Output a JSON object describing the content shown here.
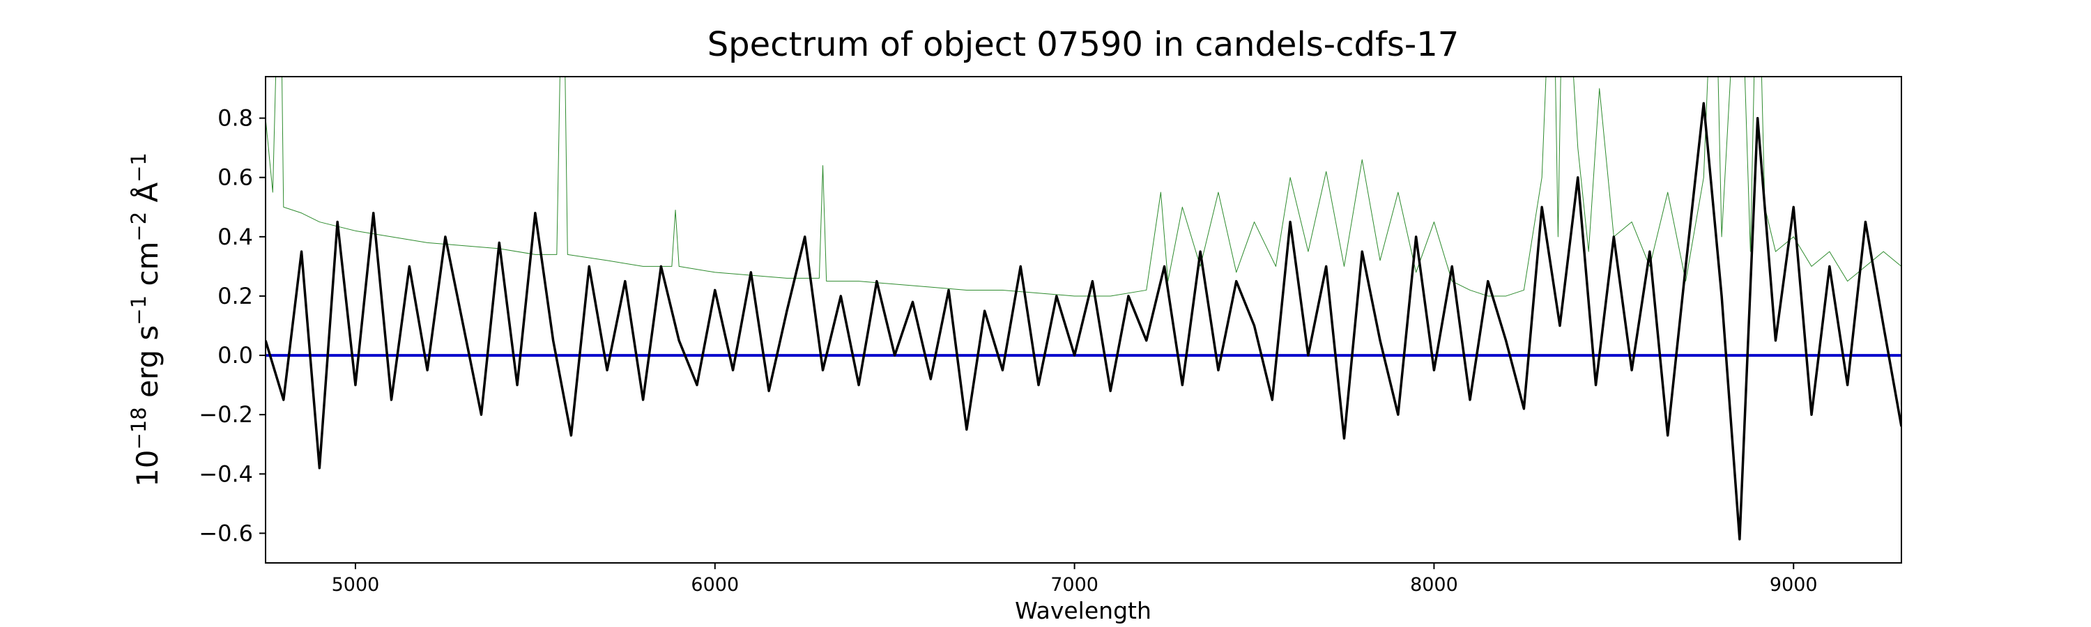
{
  "chart_data": {
    "type": "line",
    "title": "Spectrum of object 07590 in candels-cdfs-17",
    "xlabel": "Wavelength",
    "ylabel": [
      {
        "text": "10"
      },
      {
        "text": "−18",
        "sup": true
      },
      {
        "text": " erg s"
      },
      {
        "text": "−1",
        "sup": true
      },
      {
        "text": " cm"
      },
      {
        "text": "−2",
        "sup": true
      },
      {
        "text": " Å"
      },
      {
        "text": "−1",
        "sup": true
      }
    ],
    "xlim": [
      4750,
      9300
    ],
    "ylim": [
      -0.7,
      0.94
    ],
    "xticks": [
      5000,
      6000,
      7000,
      8000,
      9000
    ],
    "yticks": [
      {
        "value": -0.6,
        "label": "−0.6"
      },
      {
        "value": -0.4,
        "label": "−0.4"
      },
      {
        "value": -0.2,
        "label": "−0.2"
      },
      {
        "value": 0,
        "label": "0.0"
      },
      0.2,
      0.4,
      0.6,
      0.8
    ],
    "grid": false,
    "series": [
      {
        "color": "#2e8b2e",
        "width": 1,
        "x": [
          4750,
          4770,
          4790,
          4800,
          4850,
          4900,
          5000,
          5100,
          5200,
          5300,
          5400,
          5500,
          5560,
          5577,
          5590,
          5700,
          5800,
          5880,
          5890,
          5900,
          6000,
          6100,
          6200,
          6290,
          6300,
          6310,
          6400,
          6500,
          6600,
          6700,
          6800,
          6900,
          7000,
          7100,
          7200,
          7240,
          7260,
          7300,
          7350,
          7400,
          7450,
          7500,
          7560,
          7600,
          7650,
          7700,
          7750,
          7800,
          7850,
          7900,
          7950,
          8000,
          8050,
          8100,
          8150,
          8200,
          8250,
          8300,
          8330,
          8345,
          8360,
          8400,
          8430,
          8460,
          8500,
          8550,
          8600,
          8650,
          8700,
          8750,
          8780,
          8800,
          8850,
          8880,
          8900,
          8920,
          8950,
          9000,
          9050,
          9100,
          9150,
          9200,
          9250,
          9300
        ],
        "values": [
          0.8,
          0.55,
          1.5,
          0.5,
          0.48,
          0.45,
          0.42,
          0.4,
          0.38,
          0.37,
          0.36,
          0.34,
          0.34,
          1.5,
          0.34,
          0.32,
          0.3,
          0.3,
          0.49,
          0.3,
          0.28,
          0.27,
          0.26,
          0.26,
          0.64,
          0.25,
          0.25,
          0.24,
          0.23,
          0.22,
          0.22,
          0.21,
          0.2,
          0.2,
          0.22,
          0.55,
          0.25,
          0.5,
          0.3,
          0.55,
          0.28,
          0.45,
          0.3,
          0.6,
          0.35,
          0.62,
          0.3,
          0.66,
          0.32,
          0.55,
          0.28,
          0.45,
          0.25,
          0.22,
          0.2,
          0.2,
          0.22,
          0.6,
          1.5,
          0.4,
          1.5,
          0.7,
          0.35,
          0.9,
          0.4,
          0.45,
          0.3,
          0.55,
          0.25,
          0.6,
          1.5,
          0.4,
          1.5,
          0.35,
          1.5,
          0.5,
          0.35,
          0.4,
          0.3,
          0.35,
          0.25,
          0.3,
          0.35,
          0.3
        ]
      },
      {
        "color": "#0000cc",
        "width": 4,
        "x": [
          4750,
          9300
        ],
        "values": [
          0,
          0
        ]
      },
      {
        "color": "#000000",
        "width": 3.5,
        "x": [
          4750,
          4800,
          4850,
          4900,
          4950,
          5000,
          5050,
          5100,
          5150,
          5200,
          5250,
          5300,
          5350,
          5400,
          5450,
          5500,
          5550,
          5600,
          5650,
          5700,
          5750,
          5800,
          5850,
          5900,
          5950,
          6000,
          6050,
          6100,
          6150,
          6200,
          6250,
          6300,
          6350,
          6400,
          6450,
          6500,
          6550,
          6600,
          6650,
          6700,
          6750,
          6800,
          6850,
          6900,
          6950,
          7000,
          7050,
          7100,
          7150,
          7200,
          7250,
          7300,
          7350,
          7400,
          7450,
          7500,
          7550,
          7600,
          7650,
          7700,
          7750,
          7800,
          7850,
          7900,
          7950,
          8000,
          8050,
          8100,
          8150,
          8200,
          8250,
          8300,
          8350,
          8400,
          8450,
          8500,
          8550,
          8600,
          8650,
          8700,
          8750,
          8800,
          8850,
          8900,
          8950,
          9000,
          9050,
          9100,
          9150,
          9200,
          9250,
          9300
        ],
        "values": [
          0.05,
          -0.15,
          0.35,
          -0.38,
          0.45,
          -0.1,
          0.48,
          -0.15,
          0.3,
          -0.05,
          0.4,
          0.1,
          -0.2,
          0.38,
          -0.1,
          0.48,
          0.05,
          -0.27,
          0.3,
          -0.05,
          0.25,
          -0.15,
          0.3,
          0.05,
          -0.1,
          0.22,
          -0.05,
          0.28,
          -0.12,
          0.15,
          0.4,
          -0.05,
          0.2,
          -0.1,
          0.25,
          0.0,
          0.18,
          -0.08,
          0.22,
          -0.25,
          0.15,
          -0.05,
          0.3,
          -0.1,
          0.2,
          0.0,
          0.25,
          -0.12,
          0.2,
          0.05,
          0.3,
          -0.1,
          0.35,
          -0.05,
          0.25,
          0.1,
          -0.15,
          0.45,
          0.0,
          0.3,
          -0.28,
          0.35,
          0.05,
          -0.2,
          0.4,
          -0.05,
          0.3,
          -0.15,
          0.25,
          0.05,
          -0.18,
          0.5,
          0.1,
          0.6,
          -0.1,
          0.4,
          -0.05,
          0.35,
          -0.27,
          0.3,
          0.85,
          0.2,
          -0.62,
          0.8,
          0.05,
          0.5,
          -0.2,
          0.3,
          -0.1,
          0.45,
          0.1,
          -0.24
        ]
      }
    ]
  }
}
